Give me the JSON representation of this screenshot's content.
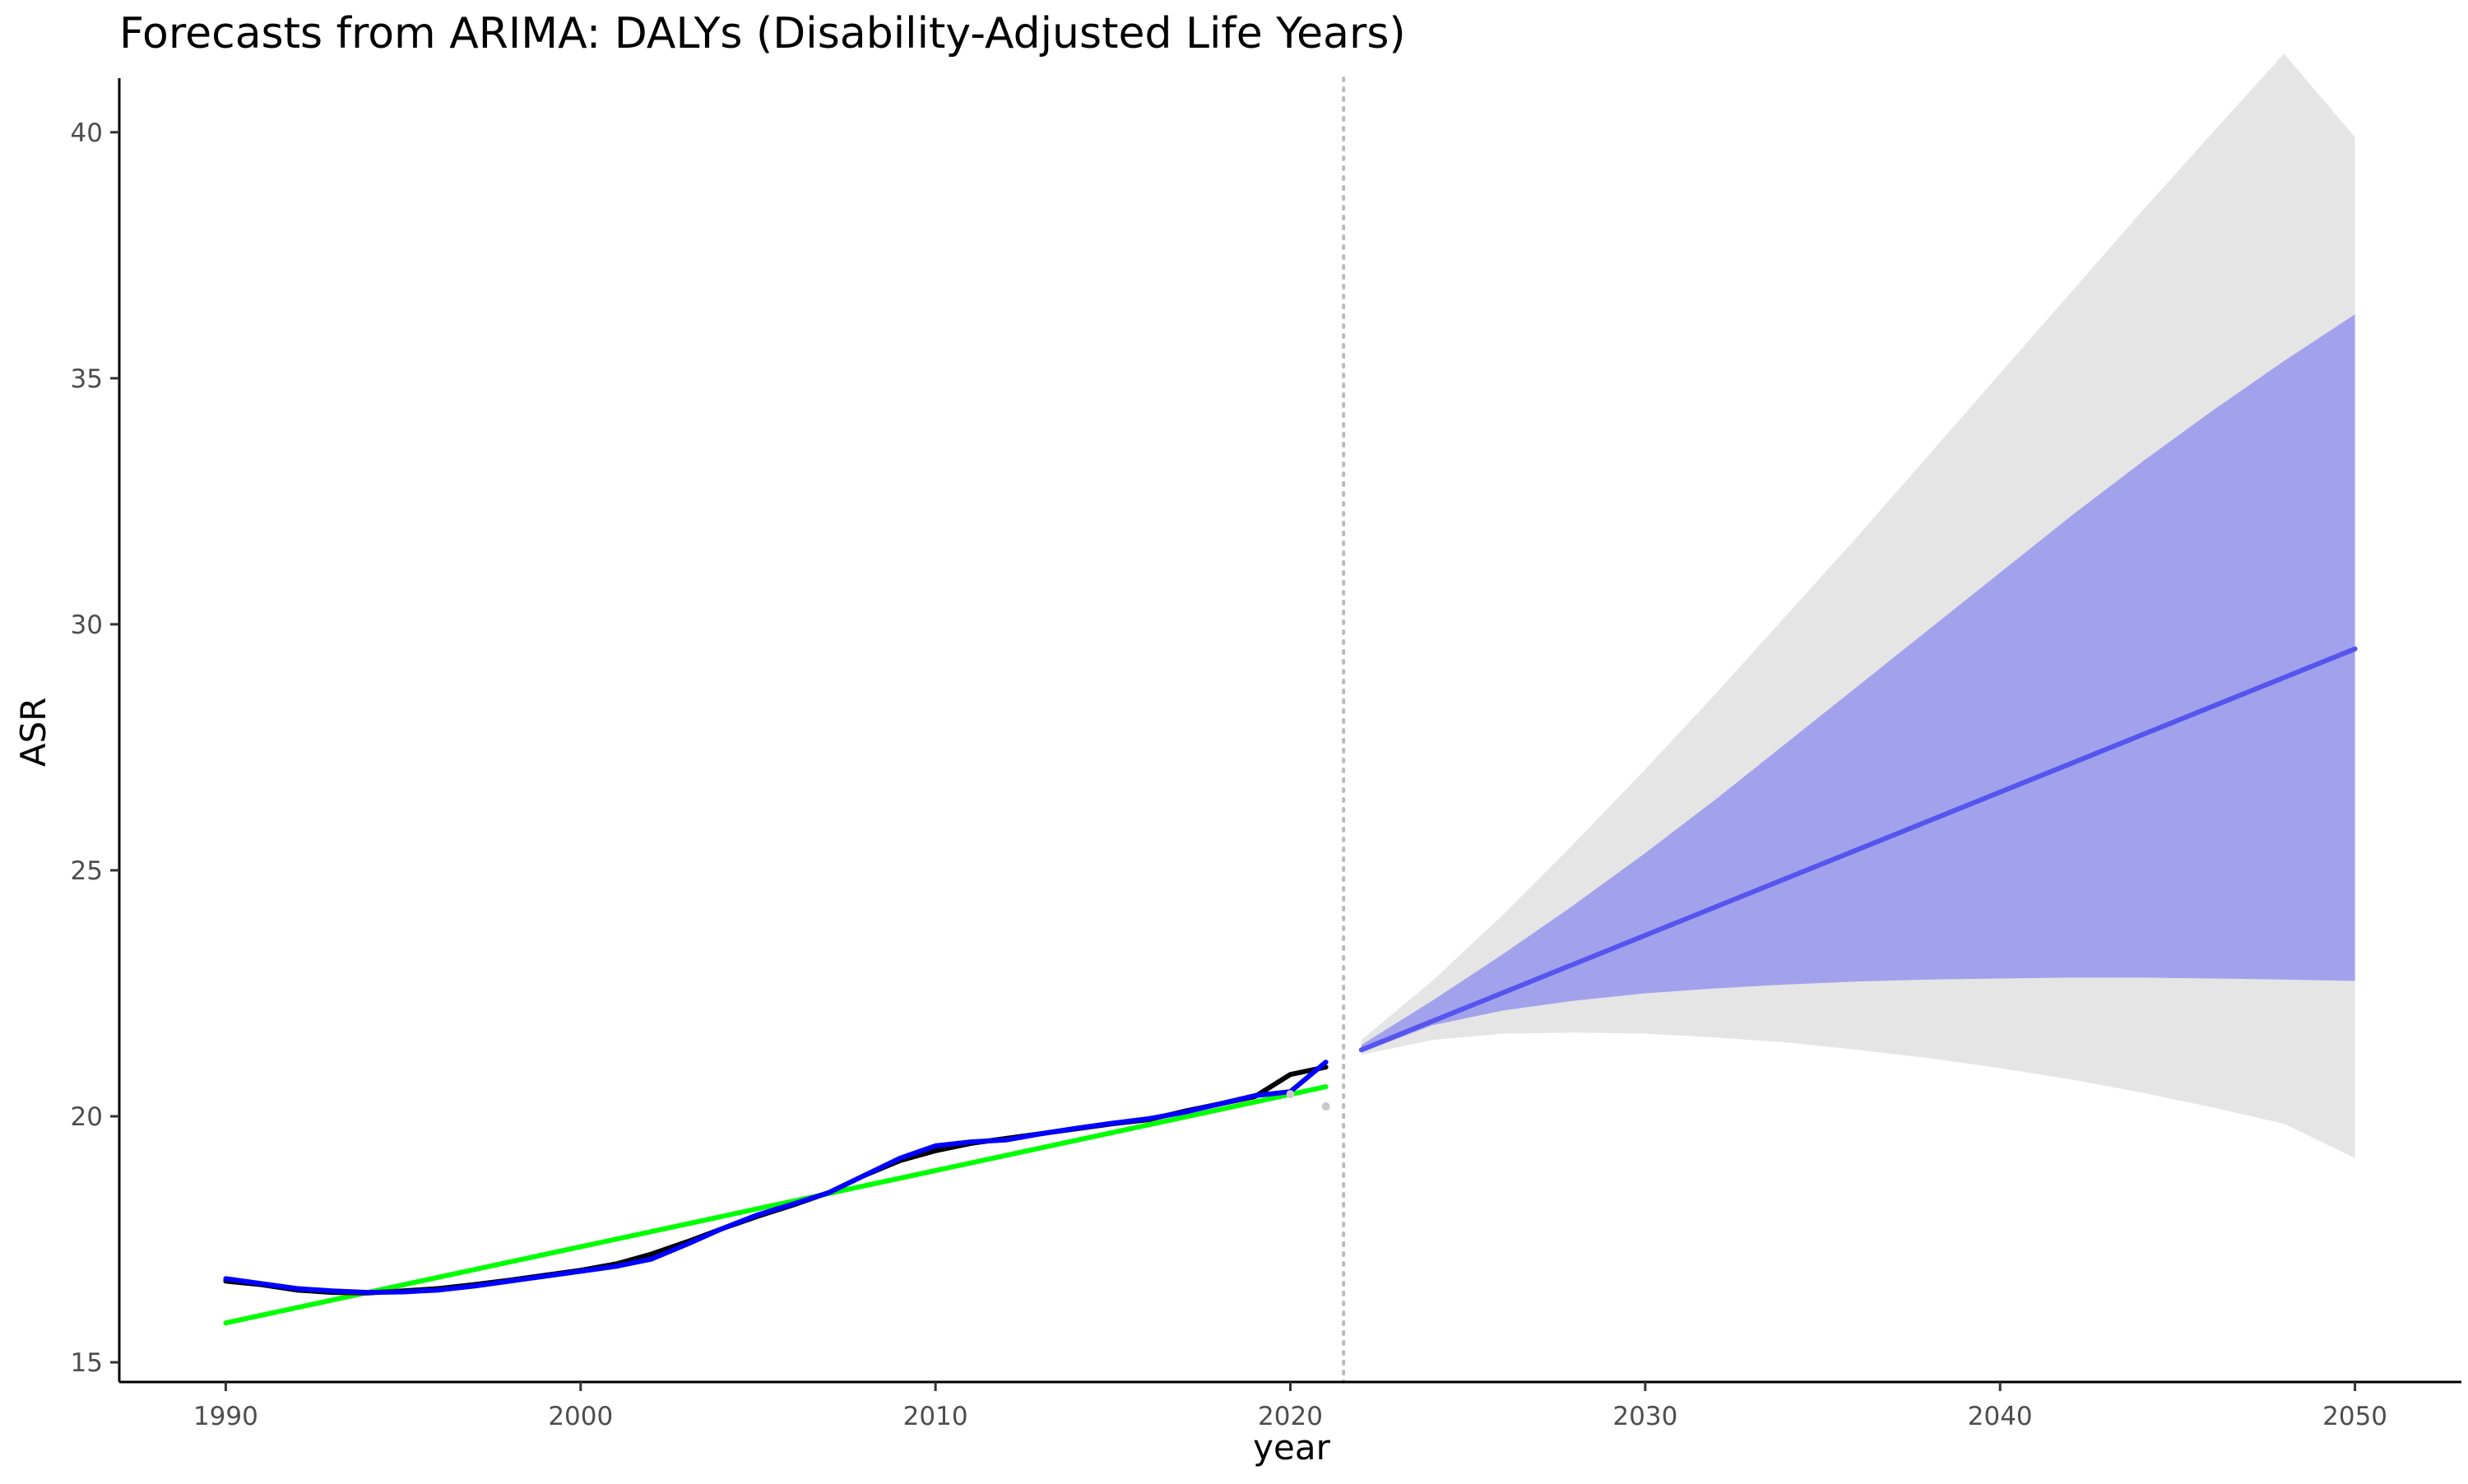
{
  "chart_data": {
    "type": "line",
    "title": "Forecasts from ARIMA: DALYs (Disability-Adjusted Life Years)",
    "xlabel": "year",
    "ylabel": "ASR",
    "xlim": [
      1987,
      2053
    ],
    "ylim": [
      14.6,
      41.1
    ],
    "x_ticks": [
      1990,
      2000,
      2010,
      2020,
      2030,
      2040,
      2050
    ],
    "y_ticks": [
      15,
      20,
      25,
      30,
      35,
      40
    ],
    "grid": false,
    "legend": "none",
    "forecast_start_marker": 2021.5,
    "colors": {
      "observed": "#000000",
      "fitted": "#0000ff",
      "trend": "#00ff00",
      "forecast_mean": "#5555ee",
      "ci80": "#a2a2ec",
      "ci95": "#e5e5e5",
      "divider": "#bbbbbb",
      "residual_points": "#c8c8c8"
    },
    "series": [
      {
        "role": "observed",
        "x": [
          1990,
          1991,
          1992,
          1993,
          1994,
          1995,
          1996,
          1997,
          1998,
          1999,
          2000,
          2001,
          2002,
          2003,
          2004,
          2005,
          2006,
          2007,
          2008,
          2009,
          2010,
          2011,
          2012,
          2013,
          2014,
          2015,
          2016,
          2017,
          2018,
          2019,
          2020,
          2021
        ],
        "y": [
          16.65,
          16.58,
          16.47,
          16.42,
          16.41,
          16.45,
          16.5,
          16.58,
          16.67,
          16.77,
          16.87,
          17.0,
          17.2,
          17.45,
          17.72,
          17.97,
          18.2,
          18.45,
          18.8,
          19.1,
          19.3,
          19.45,
          19.55,
          19.65,
          19.75,
          19.85,
          19.93,
          20.1,
          20.25,
          20.4,
          20.85,
          21.0
        ]
      },
      {
        "role": "fitted",
        "x": [
          1990,
          1991,
          1992,
          1993,
          1994,
          1995,
          1996,
          1997,
          1998,
          1999,
          2000,
          2001,
          2002,
          2003,
          2004,
          2005,
          2006,
          2007,
          2008,
          2009,
          2010,
          2011,
          2012,
          2013,
          2014,
          2015,
          2016,
          2017,
          2018,
          2019,
          2020,
          2021
        ],
        "y": [
          16.7,
          16.6,
          16.5,
          16.45,
          16.42,
          16.43,
          16.47,
          16.55,
          16.65,
          16.75,
          16.85,
          16.95,
          17.1,
          17.4,
          17.72,
          18.0,
          18.22,
          18.45,
          18.8,
          19.15,
          19.4,
          19.48,
          19.52,
          19.65,
          19.76,
          19.86,
          19.95,
          20.08,
          20.25,
          20.42,
          20.5,
          21.1
        ]
      },
      {
        "role": "trend",
        "x": [
          1990,
          2021
        ],
        "y": [
          15.8,
          20.6
        ]
      },
      {
        "role": "forecast_mean",
        "x": [
          2022,
          2050
        ],
        "y": [
          21.35,
          29.5
        ]
      }
    ],
    "intervals": [
      {
        "level": "95%",
        "x": [
          2022,
          2024,
          2026,
          2028,
          2030,
          2032,
          2034,
          2036,
          2038,
          2040,
          2042,
          2044,
          2046,
          2048,
          2050
        ],
        "lower": [
          21.25,
          21.55,
          21.68,
          21.7,
          21.68,
          21.6,
          21.5,
          21.35,
          21.18,
          20.98,
          20.75,
          20.48,
          20.18,
          19.85,
          19.15
        ],
        "upper": [
          21.55,
          22.75,
          24.1,
          25.55,
          27.05,
          28.6,
          30.2,
          31.8,
          33.45,
          35.1,
          36.75,
          38.4,
          40.0,
          41.6,
          39.9
        ]
      },
      {
        "level": "80%",
        "x": [
          2022,
          2024,
          2026,
          2028,
          2030,
          2032,
          2034,
          2036,
          2038,
          2040,
          2042,
          2044,
          2046,
          2048,
          2050
        ],
        "lower": [
          21.3,
          21.85,
          22.15,
          22.35,
          22.5,
          22.6,
          22.68,
          22.74,
          22.78,
          22.8,
          22.82,
          22.82,
          22.8,
          22.78,
          22.75
        ],
        "upper": [
          21.45,
          22.35,
          23.3,
          24.3,
          25.35,
          26.45,
          27.6,
          28.75,
          29.9,
          31.05,
          32.2,
          33.3,
          34.35,
          35.35,
          36.3
        ]
      }
    ],
    "residual_points": [
      {
        "x": 2020,
        "y": 20.45
      },
      {
        "x": 2021,
        "y": 20.2
      }
    ]
  }
}
